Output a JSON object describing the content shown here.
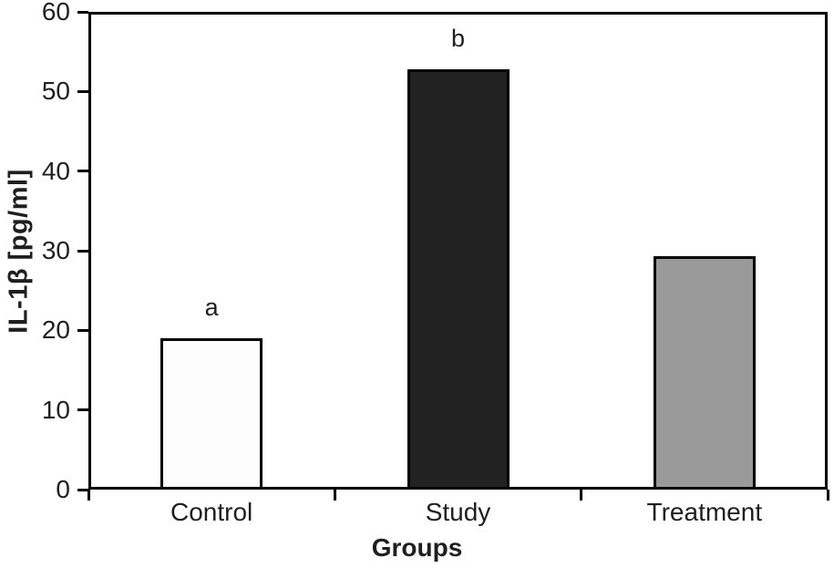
{
  "chart_data": {
    "type": "bar",
    "title": "",
    "categories": [
      "Control",
      "Study",
      "Treatment"
    ],
    "values": [
      19.0,
      52.8,
      29.3
    ],
    "bar_labels": [
      "a",
      "b",
      ""
    ],
    "bar_colors": [
      "#fcfcfc",
      "#222222",
      "#999999"
    ],
    "bar_border_color": "#000000",
    "xlabel": "Groups",
    "ylabel": "IL-1β [pg/ml]",
    "ylim": [
      0,
      60
    ],
    "yticks": [
      0,
      10,
      20,
      30,
      40,
      50,
      60
    ],
    "grid": false,
    "legend": "none",
    "frame": "full-box",
    "text_color": "#1f1f1f"
  }
}
